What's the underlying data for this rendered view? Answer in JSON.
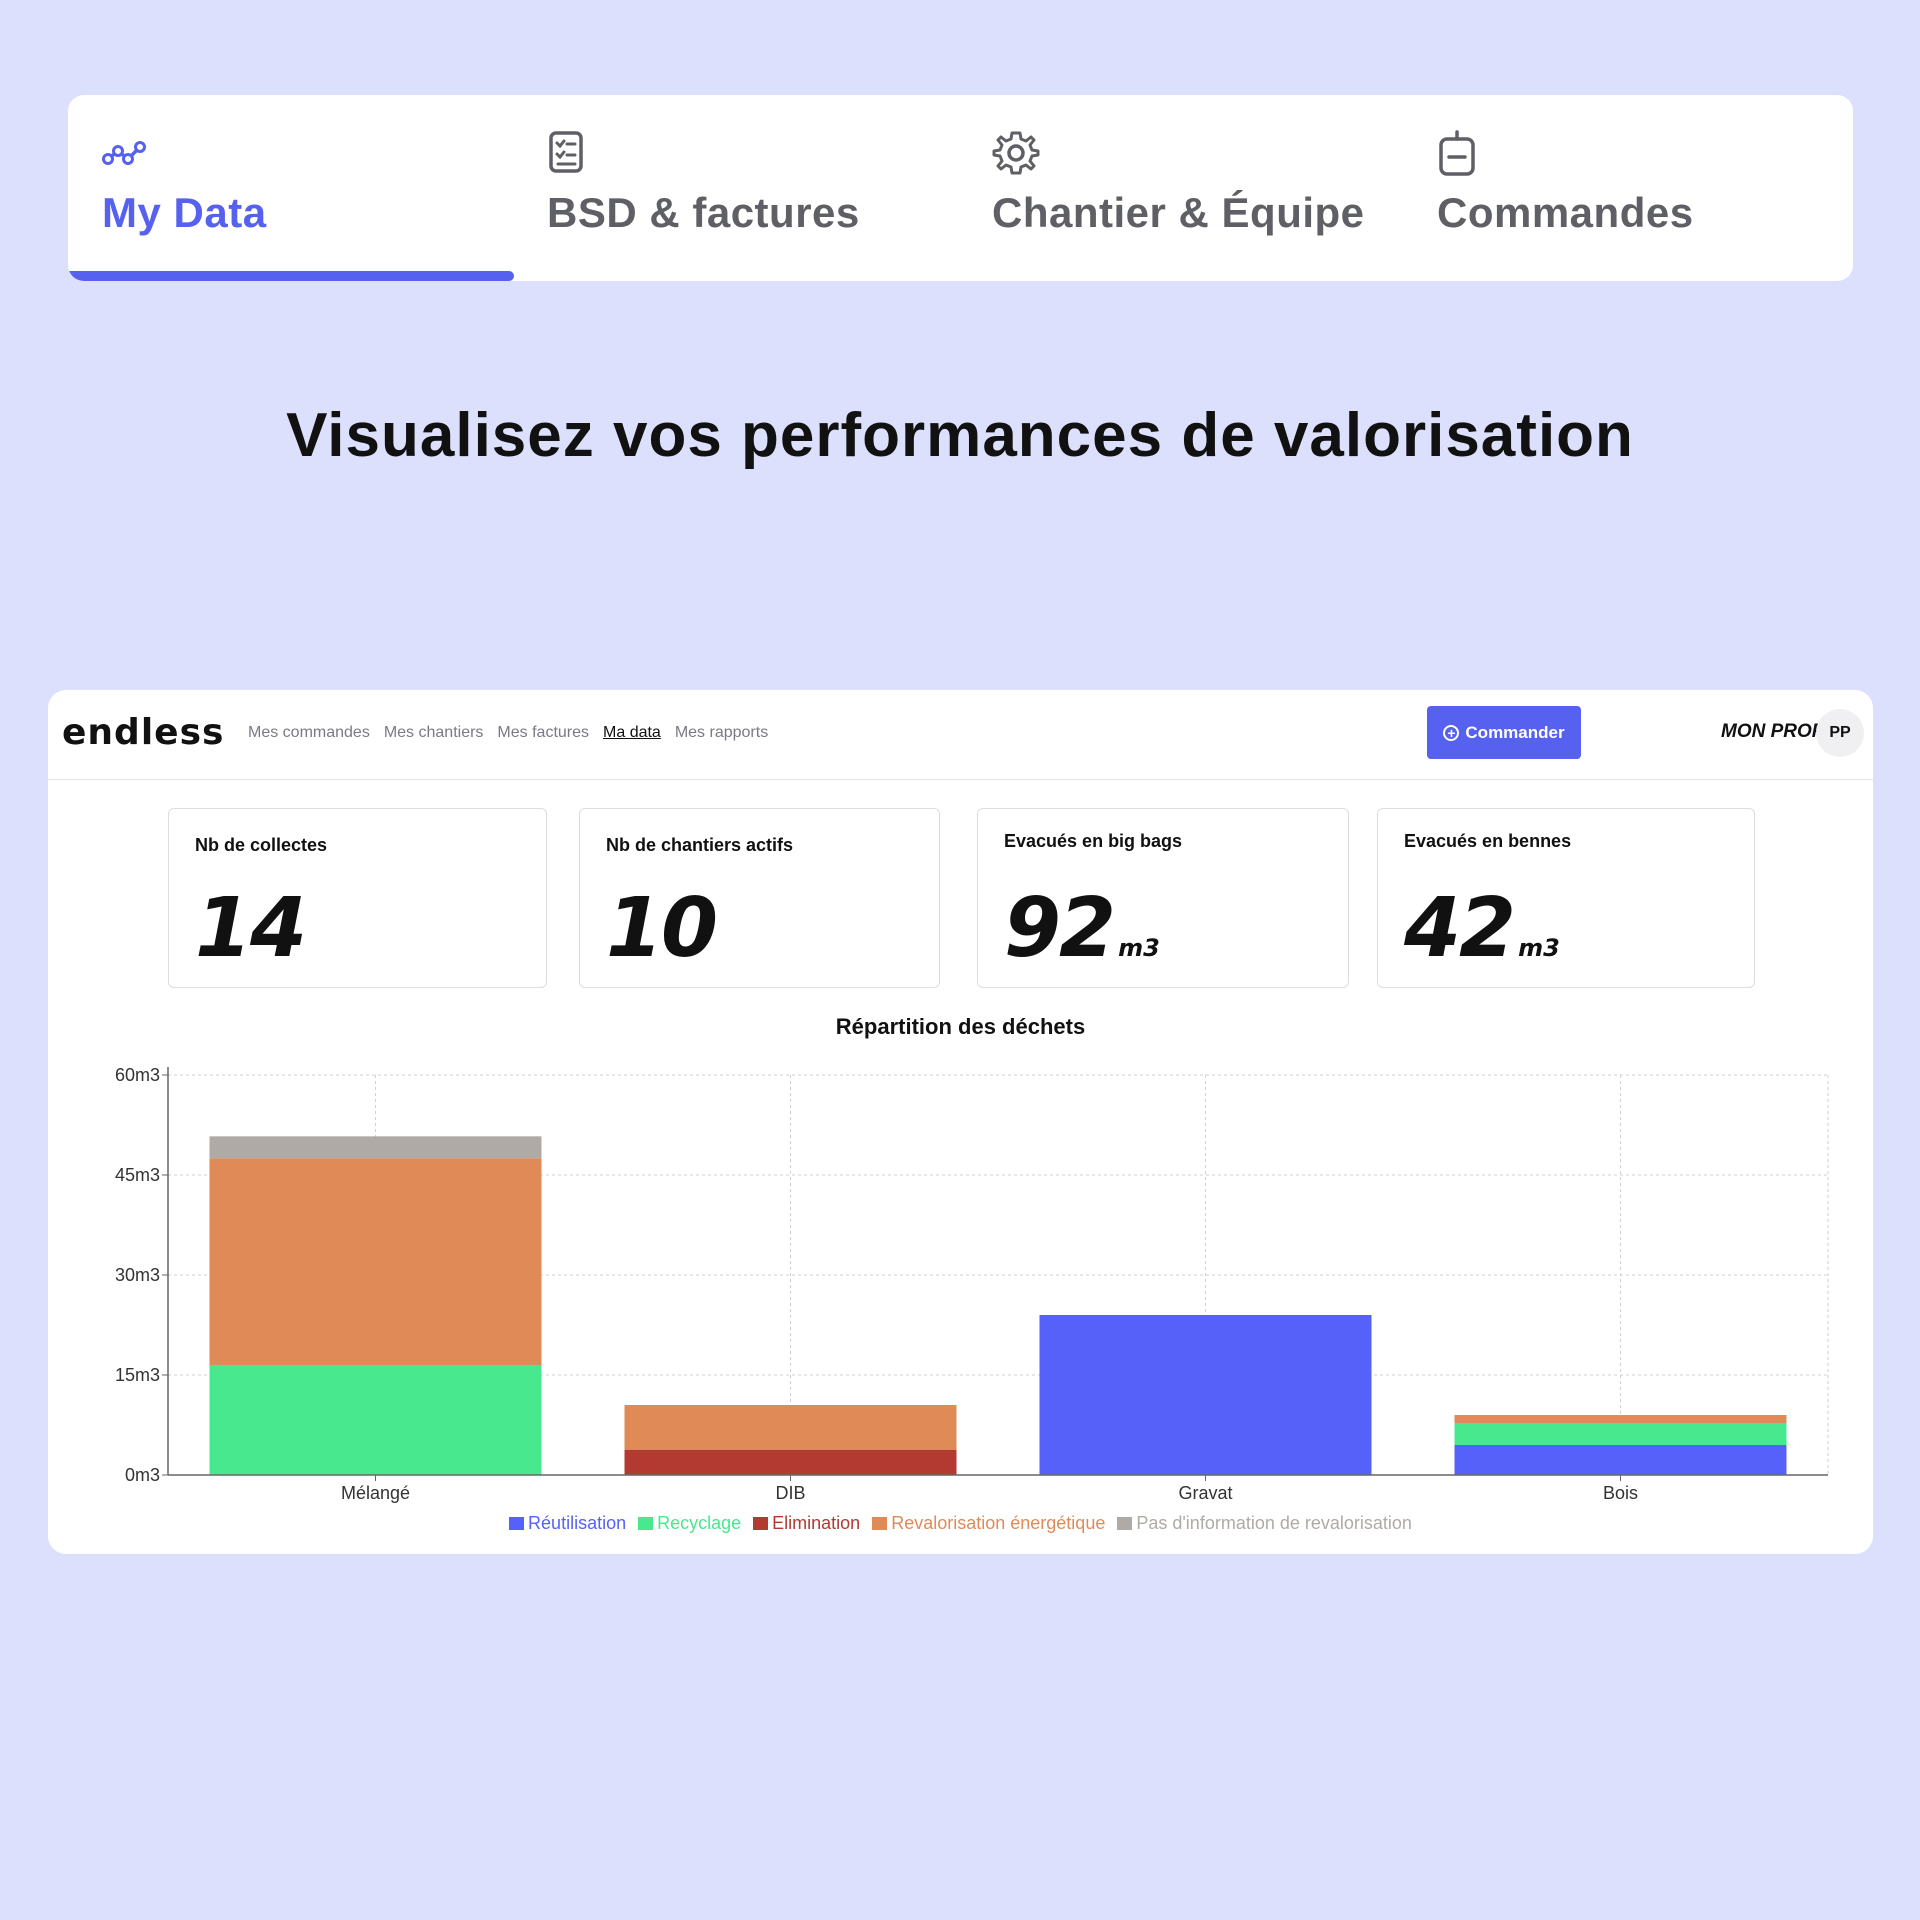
{
  "tabs": [
    {
      "label": "My Data",
      "icon": "line-chart-icon",
      "active": true
    },
    {
      "label": "BSD & factures",
      "icon": "document-list-icon",
      "active": false
    },
    {
      "label": "Chantier & Équipe",
      "icon": "gear-icon",
      "active": false
    },
    {
      "label": "Commandes",
      "icon": "container-icon",
      "active": false
    }
  ],
  "headline": "Visualisez vos performances de valorisation",
  "app": {
    "logo": "endless",
    "nav": [
      "Mes commandes",
      "Mes chantiers",
      "Mes factures",
      "Ma data",
      "Mes rapports"
    ],
    "active_nav": "Ma data",
    "order_button": "Commander",
    "profile_label": "MON PROFIL",
    "avatar_initials": "PP"
  },
  "stats": [
    {
      "label": "Nb de collectes",
      "value": "14",
      "unit": ""
    },
    {
      "label": "Nb de chantiers actifs",
      "value": "10",
      "unit": ""
    },
    {
      "label": "Evacués en big bags",
      "value": "92",
      "unit": "m3"
    },
    {
      "label": "Evacués en bennes",
      "value": "42",
      "unit": "m3"
    }
  ],
  "colors": {
    "accent": "#5661f0",
    "background": "#dde0fd"
  },
  "chart_data": {
    "type": "bar",
    "stacked": true,
    "title": "Répartition des déchets",
    "categories": [
      "Mélangé",
      "DIB",
      "Gravat",
      "Bois"
    ],
    "series": [
      {
        "name": "Réutilisation",
        "color": "#5661f9",
        "values": [
          0,
          0,
          24,
          4.5
        ]
      },
      {
        "name": "Recyclage",
        "color": "#47e88e",
        "values": [
          16.5,
          0,
          0,
          3.3
        ]
      },
      {
        "name": "Elimination",
        "color": "#b23a31",
        "values": [
          0,
          3.8,
          0,
          0
        ]
      },
      {
        "name": "Revalorisation énergétique",
        "color": "#df8a57",
        "values": [
          31,
          6.7,
          0,
          1.2
        ]
      },
      {
        "name": "Pas d'information de revalorisation",
        "color": "#b0aaa6",
        "values": [
          3.3,
          0,
          0,
          0
        ]
      }
    ],
    "ylim": [
      0,
      60
    ],
    "yticks": [
      0,
      15,
      30,
      45,
      60
    ],
    "ytick_labels": [
      "0m3",
      "15m3",
      "30m3",
      "45m3",
      "60m3"
    ],
    "grid": true,
    "legend_position": "bottom"
  }
}
